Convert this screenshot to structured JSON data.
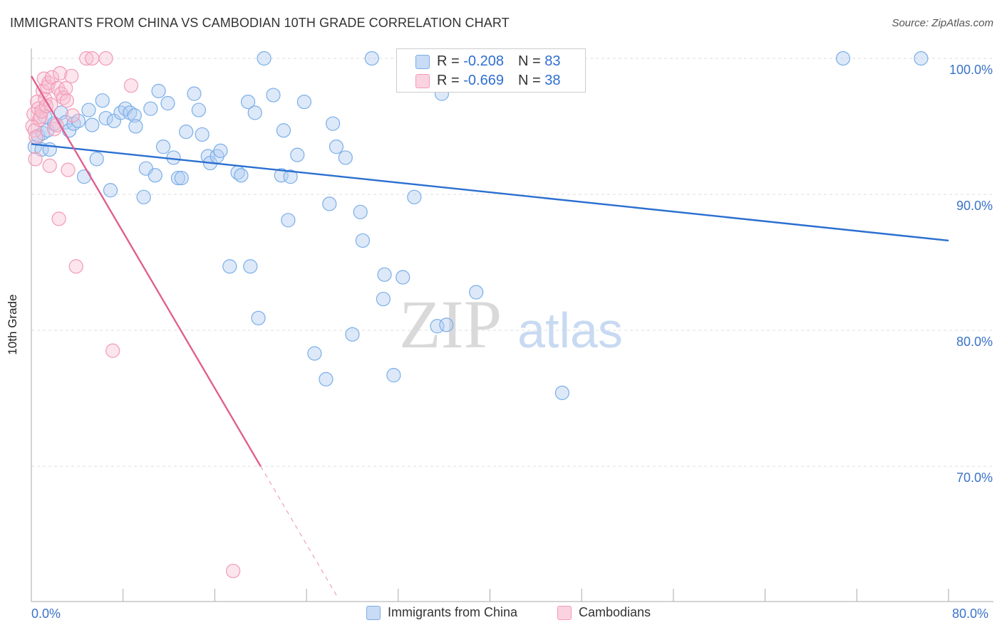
{
  "header": {
    "title": "IMMIGRANTS FROM CHINA VS CAMBODIAN 10TH GRADE CORRELATION CHART",
    "source": "Source: ZipAtlas.com"
  },
  "watermark": {
    "zip": "ZIP",
    "atlas": "atlas"
  },
  "stats_legend": [
    {
      "r_label": "R = ",
      "r_value": "-0.208",
      "n_label": "N = ",
      "n_value": "83",
      "color": "#7aaee8"
    },
    {
      "r_label": "R = ",
      "r_value": "-0.669",
      "n_label": "N = ",
      "n_value": "38",
      "color": "#f29ab6"
    }
  ],
  "bottom_legend": [
    {
      "label": "Immigrants from China",
      "color": "#7aaee8"
    },
    {
      "label": "Cambodians",
      "color": "#f29ab6"
    }
  ],
  "chart_data": {
    "type": "scatter",
    "title": "IMMIGRANTS FROM CHINA VS CAMBODIAN 10TH GRADE CORRELATION CHART",
    "xlabel": "",
    "ylabel": "10th Grade",
    "xlim": [
      0,
      80
    ],
    "ylim": [
      60.5,
      101.5
    ],
    "x_tick_labels": [
      "0.0%",
      "80.0%"
    ],
    "y_ticks": [
      {
        "value": 100,
        "label": "100.0%"
      },
      {
        "value": 90,
        "label": "90.0%"
      },
      {
        "value": 80,
        "label": "80.0%"
      },
      {
        "value": 70,
        "label": "70.0%"
      }
    ],
    "grid": true,
    "legend_position": "top-center",
    "series": [
      {
        "name": "Immigrants from China",
        "color": "#7aaee8",
        "line_color": "#2a6fd0",
        "trend": {
          "x0": 0,
          "y0": 93.7,
          "x1": 80,
          "y1": 86.6
        },
        "points": [
          [
            0.3,
            93.5
          ],
          [
            0.6,
            94.3
          ],
          [
            0.9,
            93.3
          ],
          [
            1.0,
            94.5
          ],
          [
            1.2,
            95.7
          ],
          [
            1.4,
            94.7
          ],
          [
            1.6,
            93.3
          ],
          [
            2.0,
            95.2
          ],
          [
            2.6,
            96.0
          ],
          [
            3.0,
            95.3
          ],
          [
            3.3,
            94.7
          ],
          [
            3.7,
            95.2
          ],
          [
            4.1,
            95.4
          ],
          [
            4.6,
            91.3
          ],
          [
            5.0,
            96.2
          ],
          [
            5.3,
            95.1
          ],
          [
            5.7,
            92.6
          ],
          [
            6.2,
            96.9
          ],
          [
            6.5,
            95.6
          ],
          [
            6.9,
            90.3
          ],
          [
            7.2,
            95.4
          ],
          [
            7.8,
            96.0
          ],
          [
            8.2,
            96.3
          ],
          [
            8.6,
            96.0
          ],
          [
            9.0,
            95.8
          ],
          [
            9.1,
            95.0
          ],
          [
            9.8,
            89.8
          ],
          [
            10.0,
            91.9
          ],
          [
            10.4,
            96.3
          ],
          [
            10.8,
            91.4
          ],
          [
            11.1,
            97.6
          ],
          [
            11.5,
            93.5
          ],
          [
            11.9,
            96.7
          ],
          [
            12.4,
            92.7
          ],
          [
            12.8,
            91.2
          ],
          [
            13.1,
            91.2
          ],
          [
            13.5,
            94.6
          ],
          [
            14.2,
            97.4
          ],
          [
            14.6,
            96.2
          ],
          [
            14.9,
            94.4
          ],
          [
            15.4,
            92.8
          ],
          [
            15.6,
            92.3
          ],
          [
            16.2,
            92.8
          ],
          [
            16.5,
            93.2
          ],
          [
            17.3,
            84.7
          ],
          [
            18.0,
            91.6
          ],
          [
            18.3,
            91.4
          ],
          [
            18.9,
            96.8
          ],
          [
            19.1,
            84.7
          ],
          [
            19.5,
            96.0
          ],
          [
            19.8,
            80.9
          ],
          [
            20.3,
            100.0
          ],
          [
            21.1,
            97.3
          ],
          [
            21.8,
            91.4
          ],
          [
            22.0,
            94.7
          ],
          [
            22.4,
            88.1
          ],
          [
            22.6,
            91.3
          ],
          [
            23.2,
            92.9
          ],
          [
            23.8,
            96.8
          ],
          [
            24.7,
            78.3
          ],
          [
            25.7,
            76.4
          ],
          [
            26.0,
            89.3
          ],
          [
            26.3,
            95.2
          ],
          [
            26.6,
            93.5
          ],
          [
            27.4,
            92.7
          ],
          [
            28.0,
            79.7
          ],
          [
            28.7,
            88.7
          ],
          [
            28.9,
            86.6
          ],
          [
            29.7,
            100.0
          ],
          [
            30.7,
            82.3
          ],
          [
            30.8,
            84.1
          ],
          [
            31.6,
            76.7
          ],
          [
            32.4,
            83.9
          ],
          [
            33.0,
            100.0
          ],
          [
            33.4,
            89.8
          ],
          [
            35.4,
            80.3
          ],
          [
            35.8,
            97.4
          ],
          [
            36.2,
            80.4
          ],
          [
            38.8,
            82.8
          ],
          [
            40.3,
            100.0
          ],
          [
            46.3,
            75.4
          ],
          [
            70.8,
            100.0
          ],
          [
            77.6,
            100.0
          ]
        ]
      },
      {
        "name": "Cambodians",
        "color": "#f29ab6",
        "line_color": "#e0608f",
        "trend": {
          "x0": 0,
          "y0": 98.7,
          "x1": 20.0,
          "y1": 70.0,
          "dashed_to_x": 26.7
        },
        "points": [
          [
            0.1,
            95.0
          ],
          [
            0.2,
            95.9
          ],
          [
            0.3,
            94.7
          ],
          [
            0.35,
            92.6
          ],
          [
            0.4,
            94.2
          ],
          [
            0.5,
            96.8
          ],
          [
            0.6,
            96.3
          ],
          [
            0.7,
            95.5
          ],
          [
            0.8,
            95.7
          ],
          [
            0.9,
            96.1
          ],
          [
            1.0,
            97.6
          ],
          [
            1.1,
            98.5
          ],
          [
            1.2,
            97.0
          ],
          [
            1.3,
            96.5
          ],
          [
            1.4,
            97.9
          ],
          [
            1.5,
            98.2
          ],
          [
            1.6,
            92.1
          ],
          [
            1.7,
            96.6
          ],
          [
            1.8,
            98.6
          ],
          [
            2.0,
            94.8
          ],
          [
            2.2,
            95.1
          ],
          [
            2.3,
            97.8
          ],
          [
            2.4,
            88.2
          ],
          [
            2.5,
            98.9
          ],
          [
            2.6,
            97.4
          ],
          [
            2.8,
            97.1
          ],
          [
            3.0,
            97.8
          ],
          [
            3.1,
            96.9
          ],
          [
            3.2,
            91.8
          ],
          [
            3.5,
            98.7
          ],
          [
            3.6,
            95.8
          ],
          [
            3.9,
            84.7
          ],
          [
            4.8,
            100.0
          ],
          [
            5.3,
            100.0
          ],
          [
            6.5,
            100.0
          ],
          [
            7.1,
            78.5
          ],
          [
            8.7,
            98.0
          ],
          [
            17.6,
            62.3
          ]
        ]
      }
    ]
  }
}
